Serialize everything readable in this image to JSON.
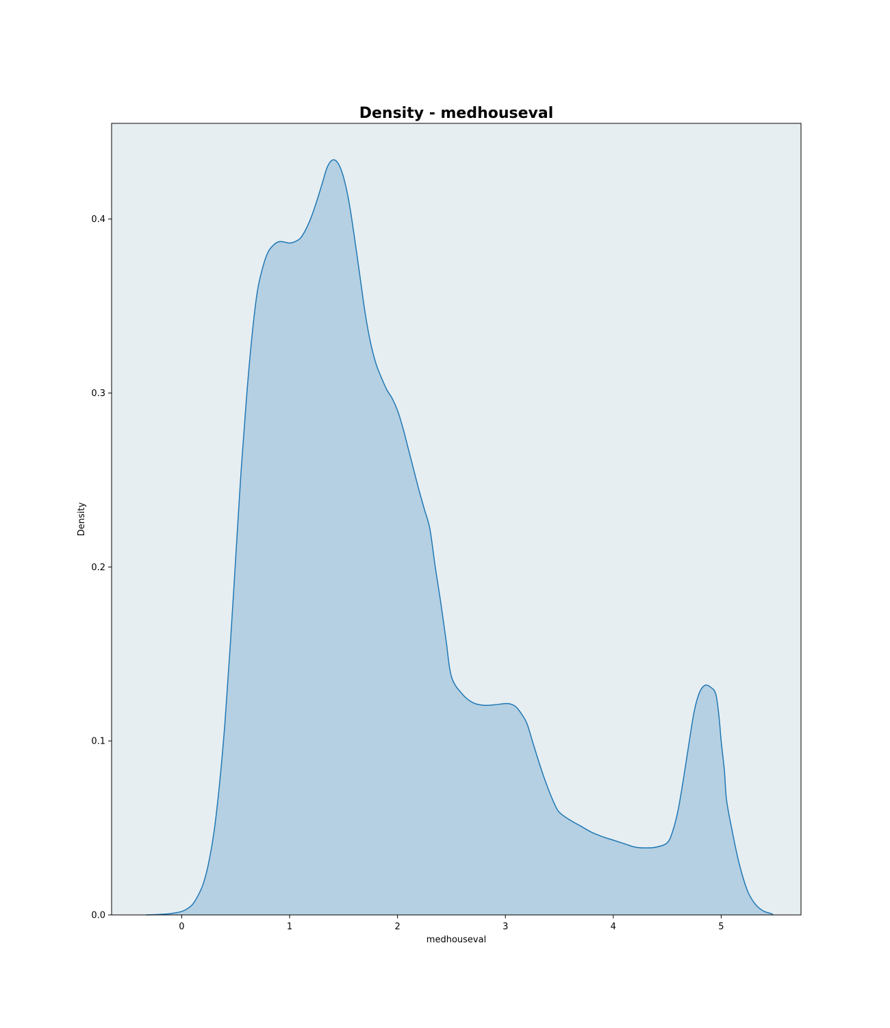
{
  "chart_data": {
    "type": "area",
    "title": "Density - medhouseval",
    "xlabel": "medhouseval",
    "ylabel": "Density",
    "xlim": [
      -0.65,
      5.74
    ],
    "ylim": [
      0,
      0.455
    ],
    "x_ticks": [
      0,
      1,
      2,
      3,
      4,
      5
    ],
    "y_ticks": [
      0.0,
      0.1,
      0.2,
      0.3,
      0.4
    ],
    "x_tick_labels": [
      "0",
      "1",
      "2",
      "3",
      "4",
      "5"
    ],
    "y_tick_labels": [
      "0.0",
      "0.1",
      "0.2",
      "0.3",
      "0.4"
    ],
    "grid": false,
    "legend": "none",
    "colors": {
      "line": "#1f77b4",
      "fill": "#b5d0e2",
      "plot_background": "#e6eef2",
      "frame": "#000000"
    },
    "series": [
      {
        "x": [
          -0.33,
          -0.2,
          -0.1,
          0.0,
          0.05,
          0.1,
          0.15,
          0.2,
          0.25,
          0.3,
          0.35,
          0.4,
          0.45,
          0.5,
          0.55,
          0.6,
          0.65,
          0.7,
          0.75,
          0.8,
          0.85,
          0.9,
          0.95,
          1.0,
          1.05,
          1.1,
          1.15,
          1.2,
          1.25,
          1.3,
          1.35,
          1.4,
          1.45,
          1.5,
          1.55,
          1.6,
          1.65,
          1.7,
          1.75,
          1.8,
          1.85,
          1.9,
          1.95,
          2.0,
          2.05,
          2.1,
          2.15,
          2.2,
          2.25,
          2.3,
          2.35,
          2.4,
          2.45,
          2.5,
          2.6,
          2.7,
          2.8,
          2.9,
          3.0,
          3.05,
          3.1,
          3.15,
          3.2,
          3.25,
          3.3,
          3.35,
          3.4,
          3.45,
          3.5,
          3.6,
          3.7,
          3.8,
          3.9,
          4.0,
          4.1,
          4.2,
          4.3,
          4.4,
          4.5,
          4.55,
          4.6,
          4.65,
          4.7,
          4.75,
          4.8,
          4.85,
          4.9,
          4.95,
          4.98,
          5.0,
          5.03,
          5.05,
          5.1,
          5.15,
          5.2,
          5.25,
          5.3,
          5.35,
          5.4,
          5.45,
          5.48
        ],
        "y": [
          0.0,
          0.0003,
          0.0008,
          0.002,
          0.0035,
          0.006,
          0.011,
          0.018,
          0.03,
          0.048,
          0.075,
          0.11,
          0.155,
          0.205,
          0.255,
          0.297,
          0.332,
          0.358,
          0.372,
          0.381,
          0.385,
          0.387,
          0.3868,
          0.3862,
          0.387,
          0.389,
          0.394,
          0.401,
          0.41,
          0.42,
          0.43,
          0.434,
          0.432,
          0.424,
          0.41,
          0.39,
          0.368,
          0.346,
          0.329,
          0.317,
          0.309,
          0.302,
          0.297,
          0.29,
          0.28,
          0.268,
          0.256,
          0.244,
          0.233,
          0.222,
          0.2,
          0.18,
          0.158,
          0.137,
          0.127,
          0.122,
          0.1205,
          0.1208,
          0.1215,
          0.1212,
          0.1195,
          0.1155,
          0.11,
          0.1,
          0.09,
          0.0805,
          0.072,
          0.0645,
          0.059,
          0.0545,
          0.051,
          0.0475,
          0.045,
          0.043,
          0.041,
          0.039,
          0.0385,
          0.039,
          0.0415,
          0.048,
          0.06,
          0.078,
          0.098,
          0.117,
          0.128,
          0.132,
          0.131,
          0.127,
          0.114,
          0.1,
          0.083,
          0.066,
          0.049,
          0.034,
          0.022,
          0.013,
          0.0075,
          0.004,
          0.002,
          0.001,
          0.0003
        ]
      }
    ]
  }
}
